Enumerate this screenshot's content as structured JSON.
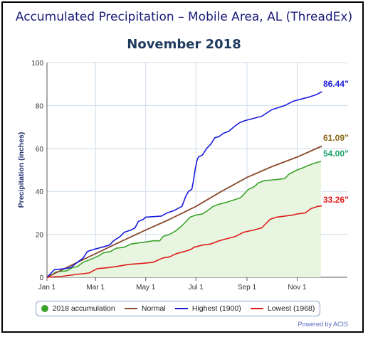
{
  "title": "Accumulated Precipitation – Mobile Area, AL (ThreadEx)",
  "subtitle": "November 2018",
  "credit": "Powered by ACIS",
  "chart_data": {
    "type": "line",
    "ylabel": "Precipitation (inches)",
    "ylim": [
      0,
      100
    ],
    "yticks": [
      0,
      20,
      40,
      60,
      80,
      100
    ],
    "x_ticks": [
      {
        "label": "Jan 1",
        "day": 1
      },
      {
        "label": "Mar 1",
        "day": 60
      },
      {
        "label": "May 1",
        "day": 121
      },
      {
        "label": "Jul 1",
        "day": 182
      },
      {
        "label": "Sep 1",
        "day": 244
      },
      {
        "label": "Nov 1",
        "day": 305
      }
    ],
    "xlim": [
      1,
      366
    ],
    "grid": true,
    "legend_position": "bottom",
    "series": [
      {
        "name": "2018 accumulation",
        "color": "#3aa32a",
        "fill": "#e8f5e0",
        "marker": "dot",
        "points": [
          [
            1,
            0
          ],
          [
            8,
            1.5
          ],
          [
            12,
            2.5
          ],
          [
            25,
            3
          ],
          [
            32,
            4.5
          ],
          [
            38,
            5
          ],
          [
            45,
            7
          ],
          [
            52,
            8
          ],
          [
            58,
            9
          ],
          [
            64,
            10
          ],
          [
            70,
            11.5
          ],
          [
            78,
            12
          ],
          [
            85,
            13.5
          ],
          [
            95,
            14
          ],
          [
            103,
            15.5
          ],
          [
            112,
            16
          ],
          [
            122,
            16.5
          ],
          [
            130,
            17
          ],
          [
            138,
            17
          ],
          [
            142,
            19
          ],
          [
            150,
            20
          ],
          [
            157,
            21.5
          ],
          [
            165,
            24
          ],
          [
            170,
            26
          ],
          [
            175,
            28
          ],
          [
            182,
            29
          ],
          [
            190,
            29.5
          ],
          [
            196,
            31
          ],
          [
            203,
            33
          ],
          [
            210,
            34
          ],
          [
            220,
            35
          ],
          [
            228,
            36
          ],
          [
            236,
            37
          ],
          [
            241,
            39
          ],
          [
            246,
            41
          ],
          [
            252,
            42
          ],
          [
            258,
            44
          ],
          [
            265,
            45
          ],
          [
            280,
            45.5
          ],
          [
            290,
            46
          ],
          [
            295,
            48
          ],
          [
            300,
            49
          ],
          [
            305,
            50
          ],
          [
            312,
            51
          ],
          [
            318,
            52
          ],
          [
            325,
            53
          ],
          [
            334,
            54
          ]
        ]
      },
      {
        "name": "Normal",
        "color": "#8b4a2b",
        "points": [
          [
            1,
            0
          ],
          [
            30,
            5.5
          ],
          [
            60,
            11
          ],
          [
            90,
            16.5
          ],
          [
            121,
            22
          ],
          [
            150,
            27
          ],
          [
            182,
            33
          ],
          [
            213,
            40
          ],
          [
            244,
            46.5
          ],
          [
            274,
            51.5
          ],
          [
            305,
            56
          ],
          [
            335,
            61.09
          ]
        ]
      },
      {
        "name": "Highest (1900)",
        "color": "#1a1adc",
        "points": [
          [
            1,
            0
          ],
          [
            10,
            3.5
          ],
          [
            22,
            4
          ],
          [
            30,
            4.5
          ],
          [
            38,
            7
          ],
          [
            45,
            9
          ],
          [
            50,
            12
          ],
          [
            58,
            13
          ],
          [
            68,
            14
          ],
          [
            77,
            15
          ],
          [
            82,
            17
          ],
          [
            90,
            19
          ],
          [
            95,
            21
          ],
          [
            103,
            22
          ],
          [
            108,
            23
          ],
          [
            112,
            26
          ],
          [
            118,
            27
          ],
          [
            121,
            28
          ],
          [
            140,
            28.5
          ],
          [
            147,
            30
          ],
          [
            155,
            31
          ],
          [
            165,
            33
          ],
          [
            170,
            38
          ],
          [
            173,
            40
          ],
          [
            177,
            41
          ],
          [
            179,
            45
          ],
          [
            181,
            50
          ],
          [
            183,
            54
          ],
          [
            185,
            56
          ],
          [
            190,
            57
          ],
          [
            195,
            60
          ],
          [
            200,
            62
          ],
          [
            205,
            65
          ],
          [
            210,
            65.5
          ],
          [
            215,
            67
          ],
          [
            222,
            68
          ],
          [
            228,
            70
          ],
          [
            235,
            72
          ],
          [
            242,
            73
          ],
          [
            252,
            74
          ],
          [
            262,
            75
          ],
          [
            274,
            78
          ],
          [
            290,
            80
          ],
          [
            300,
            82
          ],
          [
            310,
            83
          ],
          [
            320,
            84
          ],
          [
            328,
            85
          ],
          [
            335,
            86.44
          ]
        ]
      },
      {
        "name": "Lowest (1968)",
        "color": "#e01a1a",
        "points": [
          [
            1,
            0
          ],
          [
            20,
            0.5
          ],
          [
            40,
            1.5
          ],
          [
            52,
            2
          ],
          [
            62,
            4
          ],
          [
            75,
            4.5
          ],
          [
            85,
            5
          ],
          [
            100,
            6
          ],
          [
            117,
            6.5
          ],
          [
            130,
            7
          ],
          [
            142,
            9
          ],
          [
            150,
            9.5
          ],
          [
            158,
            11
          ],
          [
            168,
            12
          ],
          [
            176,
            13
          ],
          [
            180,
            14
          ],
          [
            190,
            15
          ],
          [
            200,
            15.5
          ],
          [
            210,
            17
          ],
          [
            220,
            18
          ],
          [
            230,
            19
          ],
          [
            240,
            21
          ],
          [
            252,
            22
          ],
          [
            262,
            23
          ],
          [
            272,
            27
          ],
          [
            280,
            28
          ],
          [
            290,
            28.5
          ],
          [
            300,
            29
          ],
          [
            305,
            29.5
          ],
          [
            315,
            30
          ],
          [
            322,
            32
          ],
          [
            330,
            33
          ],
          [
            335,
            33.26
          ]
        ]
      }
    ],
    "end_labels": [
      {
        "series": "Highest (1900)",
        "text": "86.44”",
        "color": "#1a1adc",
        "value": 86.44
      },
      {
        "series": "Normal",
        "text": "61.09”",
        "color": "#8b6a1a",
        "value": 61.09
      },
      {
        "series": "2018 accumulation",
        "text": "54.00”",
        "color": "#1aa26a",
        "value": 54.0
      },
      {
        "series": "Lowest (1968)",
        "text": "33.26”",
        "color": "#e01a1a",
        "value": 33.26
      }
    ]
  }
}
